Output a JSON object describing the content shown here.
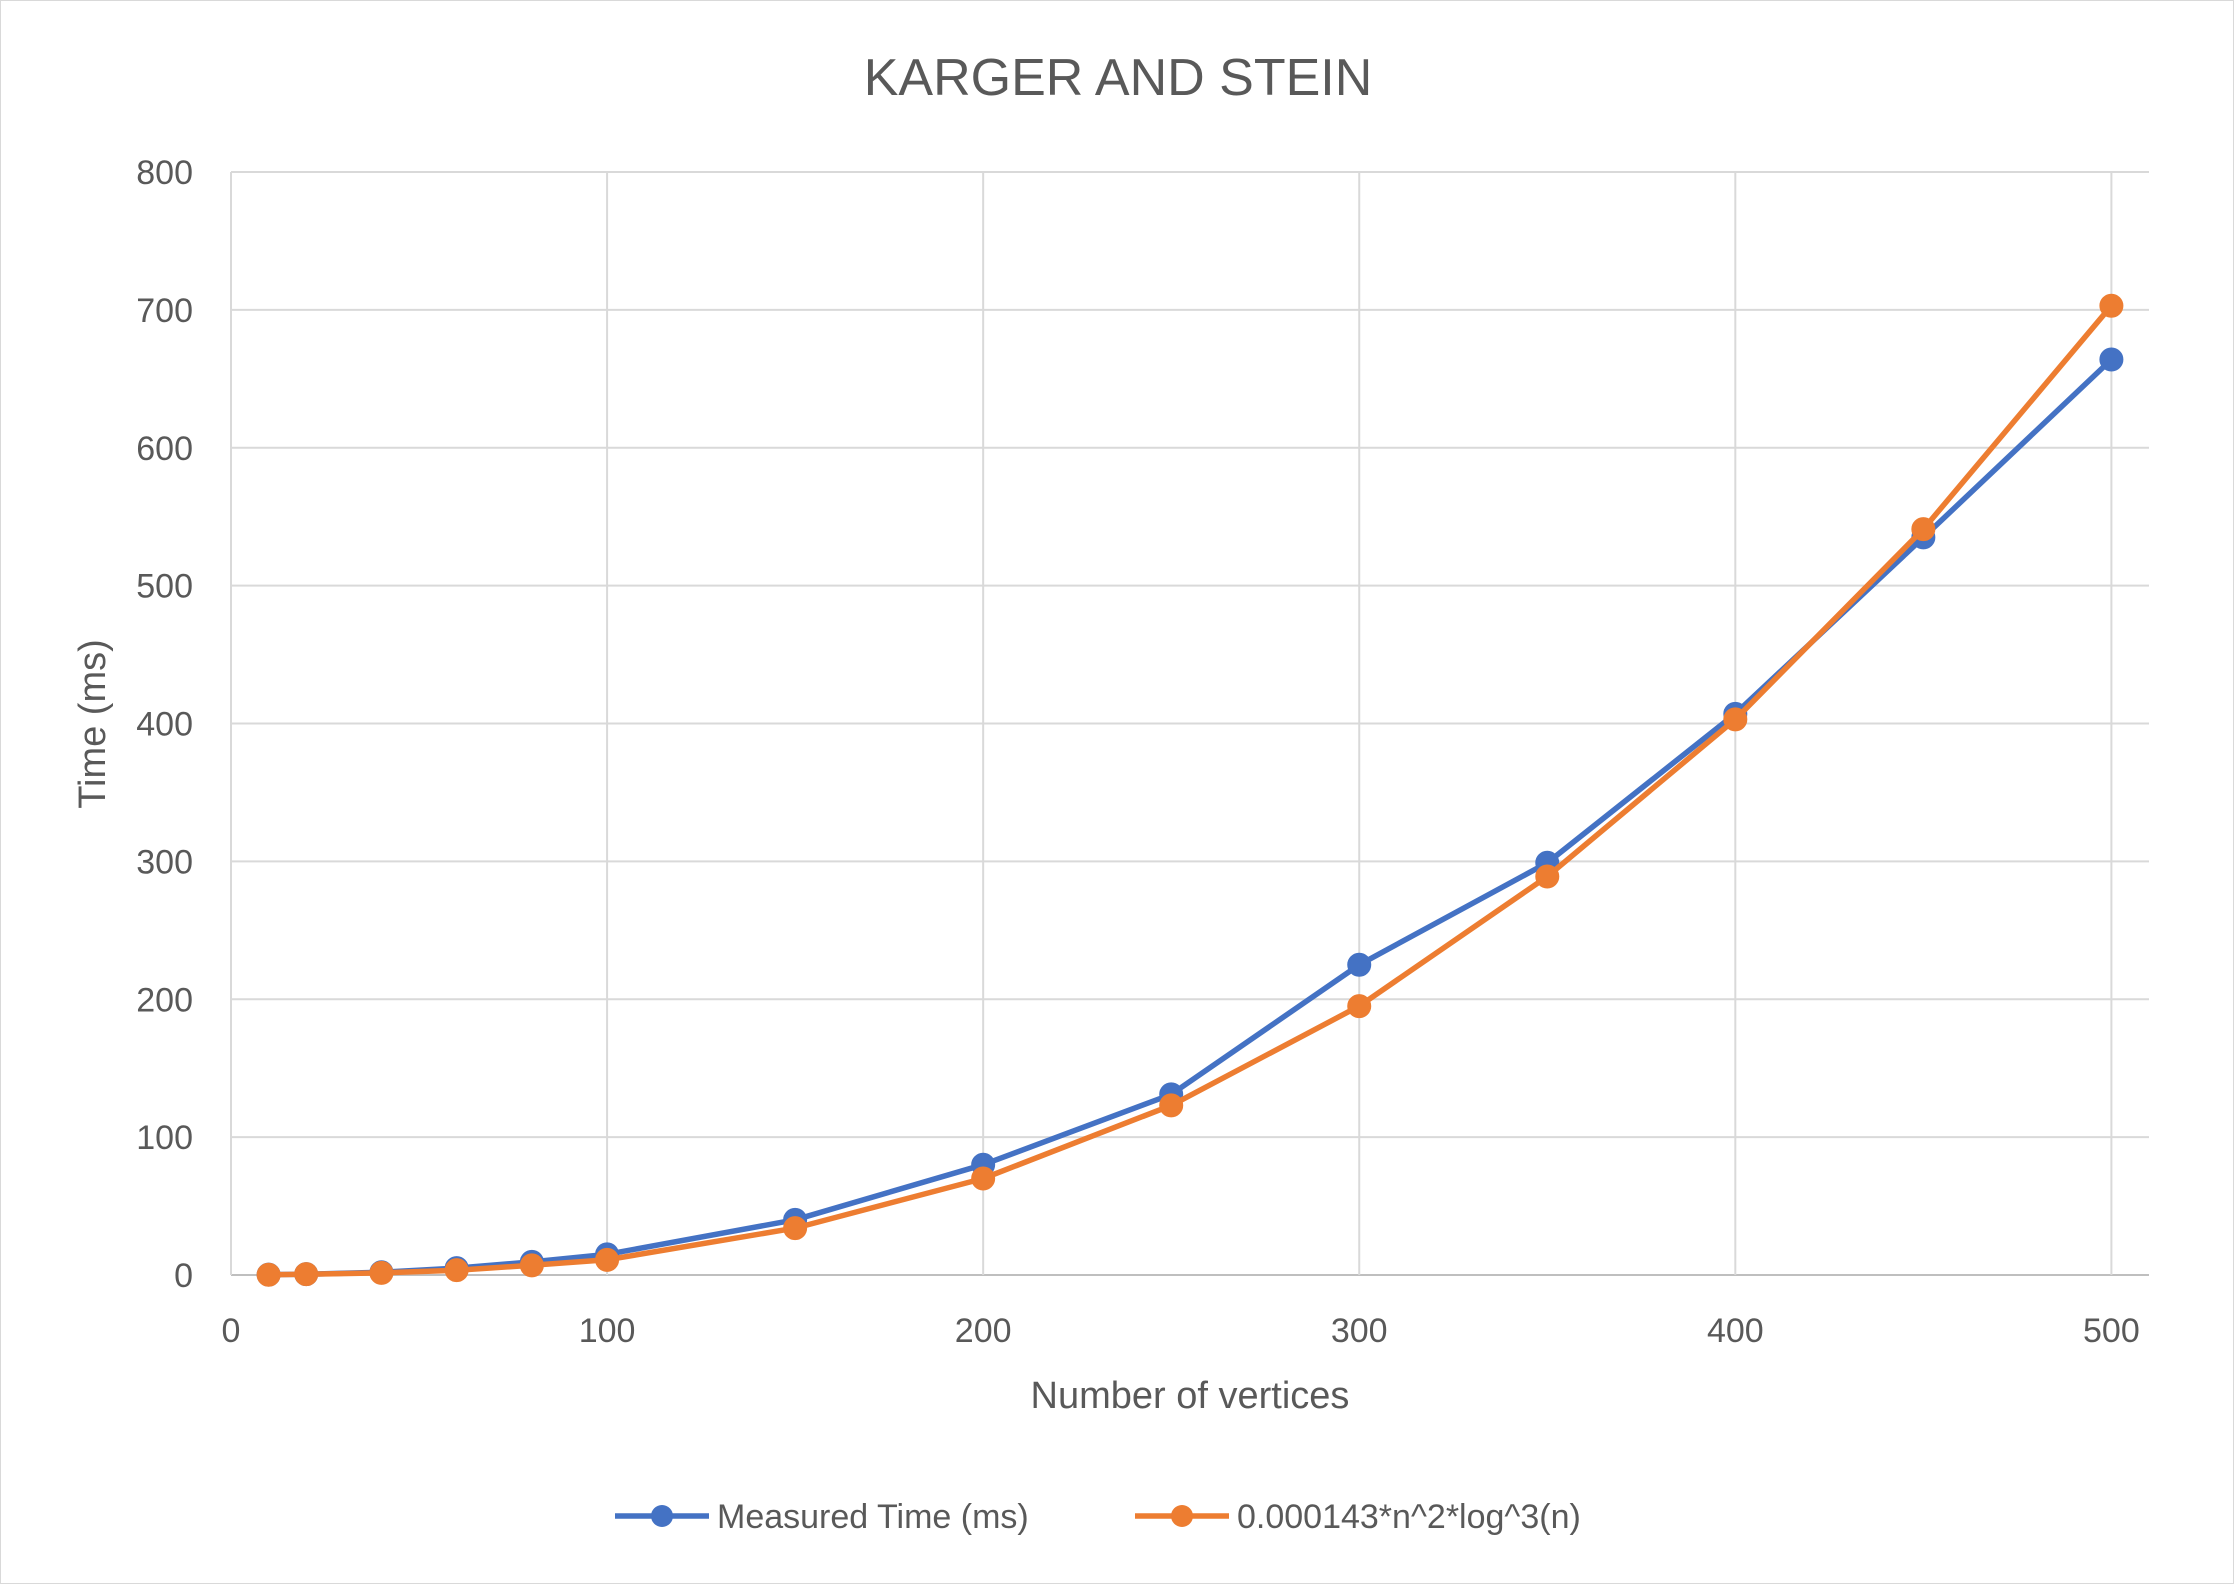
{
  "chart_data": {
    "type": "line",
    "title": "KARGER AND STEIN",
    "xlabel": "Number of vertices",
    "ylabel": "Time (ms)",
    "xlim": [
      0,
      510
    ],
    "ylim": [
      0,
      800
    ],
    "xticks": [
      0,
      100,
      200,
      300,
      400,
      500
    ],
    "yticks": [
      0,
      100,
      200,
      300,
      400,
      500,
      600,
      700,
      800
    ],
    "grid": true,
    "legend_position": "bottom",
    "x": [
      10,
      20,
      40,
      60,
      80,
      100,
      150,
      200,
      250,
      300,
      350,
      400,
      450,
      500
    ],
    "series": [
      {
        "name": "Measured Time (ms)",
        "color": "#4472c4",
        "values": [
          0.3,
          0.6,
          2,
          5,
          9.5,
          15,
          40,
          80,
          131,
          225,
          299,
          407,
          535,
          664
        ]
      },
      {
        "name": "0.000143*n^2*log^3(n)",
        "color": "#ed7d31",
        "values": [
          0.2,
          0.6,
          1.5,
          3.5,
          7,
          11,
          34,
          70,
          123,
          195,
          289,
          403,
          541,
          703
        ]
      }
    ]
  }
}
